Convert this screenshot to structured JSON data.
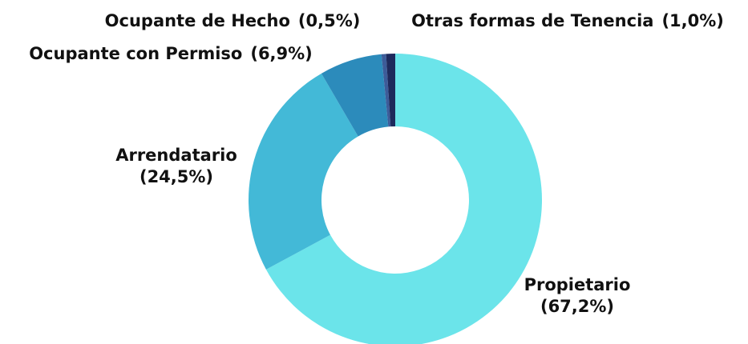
{
  "chart_data": {
    "type": "pie",
    "categories": [
      "Propietario",
      "Arrendatario",
      "Ocupante con Permiso",
      "Ocupante de Hecho",
      "Otras formas de Tenencia"
    ],
    "values": [
      67.2,
      24.5,
      6.9,
      0.5,
      1.0
    ],
    "value_labels": [
      "(67,2%)",
      "(24,5%)",
      "(6,9%)",
      "(0,5%)",
      "(1,0%)"
    ],
    "colors": [
      "#6be4ea",
      "#43b9d7",
      "#2c8bbb",
      "#3d5c99",
      "#1e2a5c"
    ],
    "donut": true
  }
}
